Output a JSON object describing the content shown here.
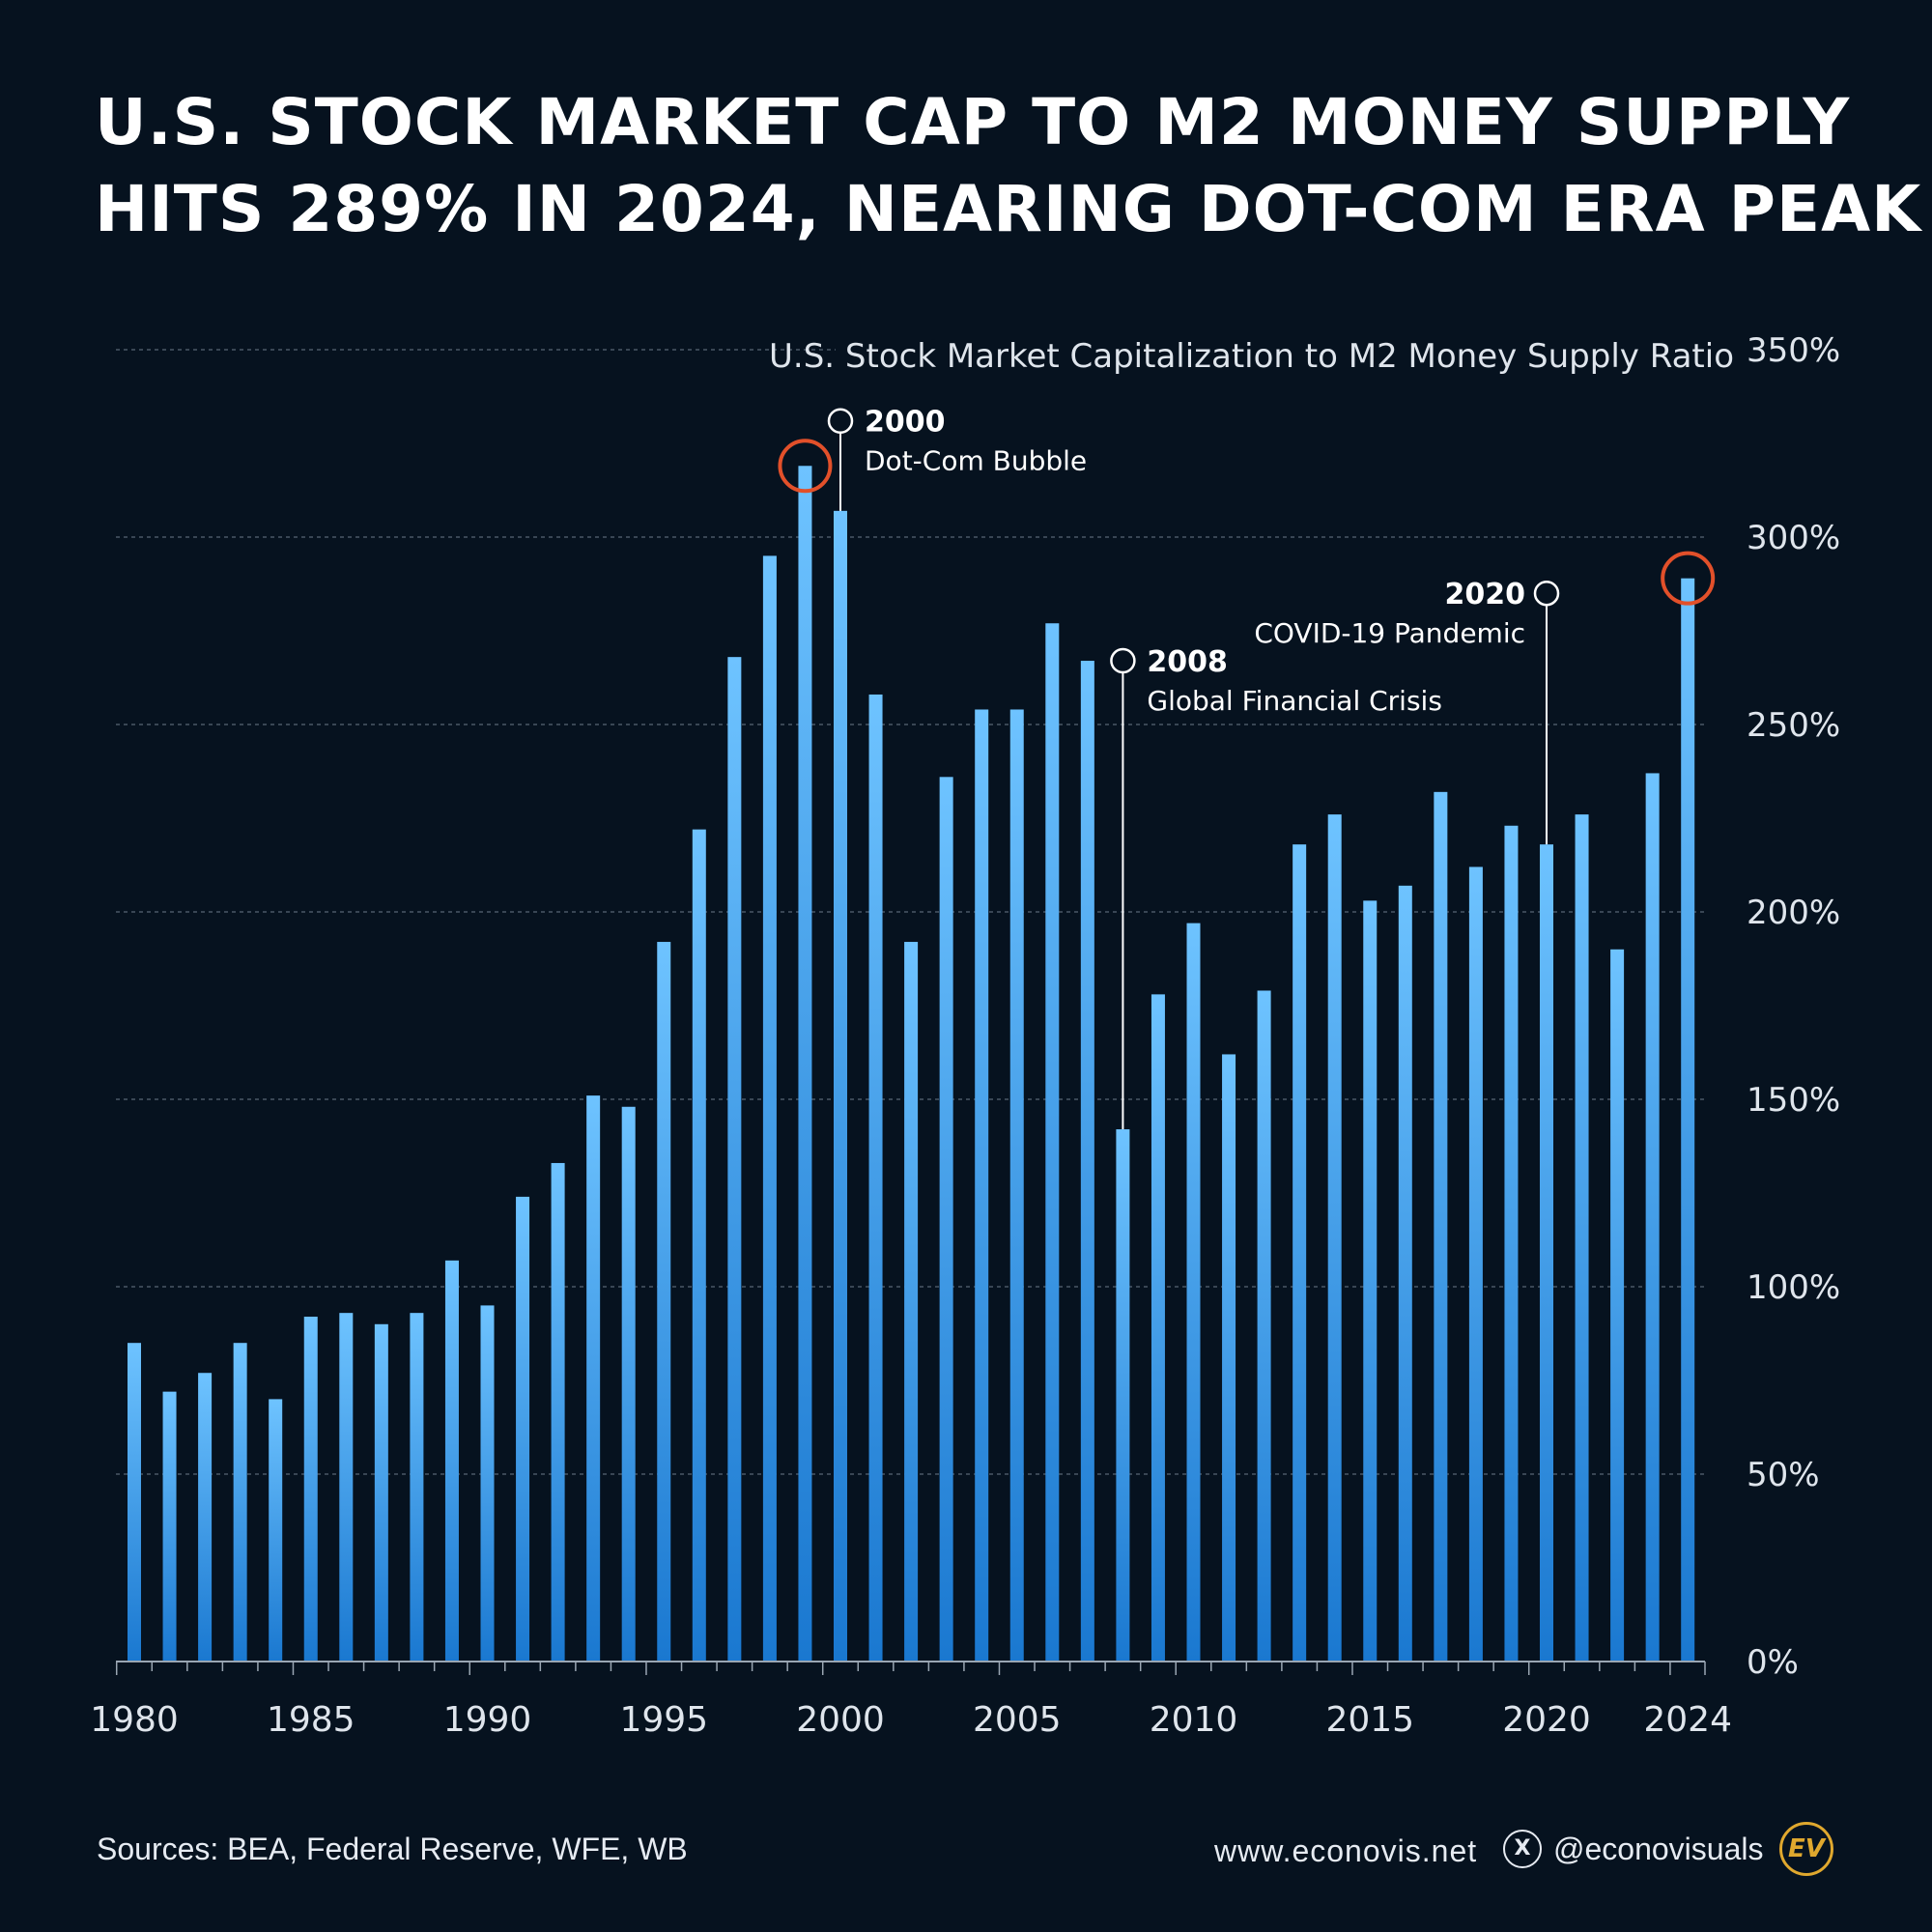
{
  "title_lines": [
    "U.S. STOCK MARKET CAP TO M2 MONEY SUPPLY",
    "HITS 289% IN 2024, NEARING DOT-COM ERA PEAK"
  ],
  "footer": {
    "sources": "Sources: BEA, Federal Reserve, WFE, WB",
    "website": "www.econovis.net",
    "x_icon": "x-logo-icon",
    "handle": "@econovisuals",
    "logo_text": "EV"
  },
  "colors": {
    "background": "#06121f",
    "bar_top": "#6ec3ff",
    "bar_bottom": "#1a78d0",
    "highlight": "#e2502a",
    "grid": "#4a5766"
  },
  "chart_data": {
    "type": "bar",
    "title": "U.S. Stock Market Capitalization to M2 Money Supply Ratio",
    "x": [
      1980,
      1981,
      1982,
      1983,
      1984,
      1985,
      1986,
      1987,
      1988,
      1989,
      1990,
      1991,
      1992,
      1993,
      1994,
      1995,
      1996,
      1997,
      1998,
      1999,
      2000,
      2001,
      2002,
      2003,
      2004,
      2005,
      2006,
      2007,
      2008,
      2009,
      2010,
      2011,
      2012,
      2013,
      2014,
      2015,
      2016,
      2017,
      2018,
      2019,
      2020,
      2021,
      2022,
      2023,
      2024
    ],
    "values": [
      85,
      72,
      77,
      85,
      70,
      92,
      93,
      90,
      93,
      107,
      95,
      124,
      133,
      151,
      148,
      192,
      222,
      268,
      295,
      319,
      307,
      258,
      192,
      236,
      254,
      254,
      277,
      267,
      142,
      178,
      197,
      162,
      179,
      218,
      226,
      203,
      207,
      232,
      212,
      223,
      218,
      226,
      190,
      237,
      289
    ],
    "ylim": [
      0,
      350
    ],
    "yticks": [
      0,
      50,
      100,
      150,
      200,
      250,
      300,
      350
    ],
    "ytick_labels": [
      "0%",
      "50%",
      "100%",
      "150%",
      "200%",
      "250%",
      "300%",
      "350%"
    ],
    "xtick_labels": [
      "1980",
      "1985",
      "1990",
      "1995",
      "2000",
      "2005",
      "2010",
      "2015",
      "2020",
      "2024"
    ],
    "xtick_years": [
      1980,
      1985,
      1990,
      1995,
      2000,
      2005,
      2010,
      2015,
      2020,
      2024
    ],
    "highlighted_years": [
      1999,
      2024
    ],
    "annotations": [
      {
        "year": 2000,
        "label_year": "2000",
        "label_text": "Dot-Com Bubble",
        "marker_value": 331
      },
      {
        "year": 2008,
        "label_year": "2008",
        "label_text": "Global Financial Crisis",
        "marker_value": 267
      },
      {
        "year": 2020,
        "label_year": "2020",
        "label_text": "COVID-19 Pandemic",
        "marker_value": 285
      }
    ],
    "grid": true
  }
}
